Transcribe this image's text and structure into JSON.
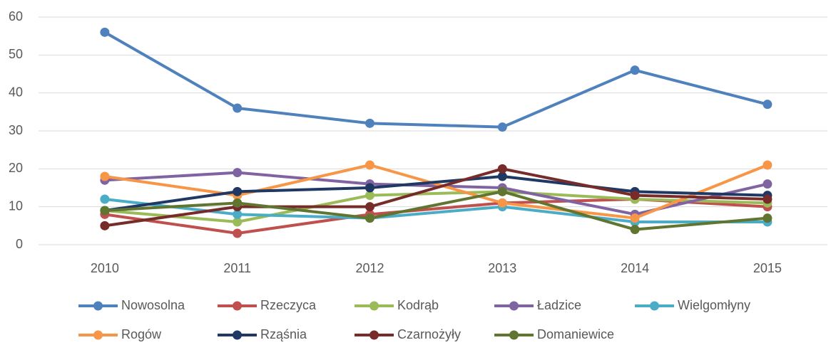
{
  "chart_data": {
    "type": "line",
    "categories": [
      "2010",
      "2011",
      "2012",
      "2013",
      "2014",
      "2015"
    ],
    "series": [
      {
        "name": "Nowosolna",
        "color": "#4f81bd",
        "values": [
          56,
          36,
          32,
          31,
          46,
          37
        ]
      },
      {
        "name": "Rzeczyca",
        "color": "#c0504d",
        "values": [
          8,
          3,
          8,
          11,
          12,
          10
        ]
      },
      {
        "name": "Kodrąb",
        "color": "#9bbb59",
        "values": [
          9,
          6,
          13,
          14,
          12,
          11
        ]
      },
      {
        "name": "Ładzice",
        "color": "#8064a2",
        "values": [
          17,
          19,
          16,
          15,
          8,
          16
        ]
      },
      {
        "name": "Wielgomłyny",
        "color": "#4bacc6",
        "values": [
          12,
          8,
          7,
          10,
          6,
          6
        ]
      },
      {
        "name": "Rogów",
        "color": "#f79646",
        "values": [
          18,
          13,
          21,
          11,
          7,
          21
        ]
      },
      {
        "name": "Rząśnia",
        "color": "#1f3864",
        "values": [
          9,
          14,
          15,
          18,
          14,
          13
        ]
      },
      {
        "name": "Czarnożyły",
        "color": "#772c2a",
        "values": [
          5,
          10,
          10,
          20,
          13,
          12
        ]
      },
      {
        "name": "Domaniewice",
        "color": "#5f7530",
        "values": [
          9,
          11,
          7,
          14,
          4,
          7
        ]
      }
    ],
    "ylim": [
      0,
      60
    ],
    "yticks": [
      0,
      10,
      20,
      30,
      40,
      50,
      60
    ],
    "grid": true,
    "legend": "bottom"
  }
}
